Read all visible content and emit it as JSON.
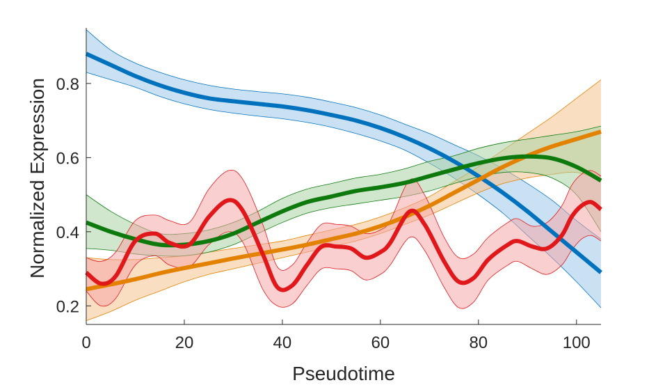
{
  "chart_data": {
    "type": "line",
    "title": "",
    "xlabel": "Pseudotime",
    "ylabel": "Normalized Expression",
    "xlim": [
      0,
      105
    ],
    "ylim": [
      0.15,
      0.95
    ],
    "xticks": [
      0,
      20,
      40,
      60,
      80,
      100
    ],
    "yticks": [
      0.2,
      0.4,
      0.6,
      0.8
    ],
    "xtick_labels": [
      "0",
      "20",
      "40",
      "60",
      "80",
      "100"
    ],
    "ytick_labels": [
      "0.2",
      "0.4",
      "0.6",
      "0.8"
    ],
    "grid": false,
    "legend": "none",
    "x": [
      0,
      5,
      10,
      15,
      20,
      25,
      30,
      35,
      40,
      45,
      50,
      55,
      60,
      65,
      70,
      75,
      80,
      85,
      90,
      95,
      100,
      105
    ],
    "series": [
      {
        "color": "#0072BD",
        "band_color": "#9cc8ea",
        "values": [
          0.88,
          0.85,
          0.82,
          0.795,
          0.775,
          0.76,
          0.752,
          0.745,
          0.738,
          0.728,
          0.715,
          0.7,
          0.68,
          0.655,
          0.625,
          0.59,
          0.55,
          0.505,
          0.455,
          0.4,
          0.345,
          0.29
        ],
        "lower": [
          0.83,
          0.81,
          0.79,
          0.765,
          0.745,
          0.73,
          0.72,
          0.712,
          0.705,
          0.695,
          0.682,
          0.665,
          0.645,
          0.62,
          0.585,
          0.545,
          0.5,
          0.45,
          0.39,
          0.33,
          0.265,
          0.195
        ],
        "upper": [
          0.945,
          0.89,
          0.855,
          0.83,
          0.81,
          0.795,
          0.785,
          0.778,
          0.772,
          0.763,
          0.75,
          0.735,
          0.715,
          0.69,
          0.665,
          0.635,
          0.605,
          0.57,
          0.53,
          0.485,
          0.43,
          0.38
        ]
      },
      {
        "color": "#D95319",
        "band_color": "#f5c290",
        "line_color": "#E38100",
        "values": [
          0.245,
          0.258,
          0.272,
          0.288,
          0.302,
          0.315,
          0.328,
          0.34,
          0.352,
          0.365,
          0.38,
          0.395,
          0.415,
          0.44,
          0.47,
          0.505,
          0.54,
          0.575,
          0.605,
          0.63,
          0.65,
          0.67
        ],
        "lower": [
          0.16,
          0.185,
          0.215,
          0.24,
          0.265,
          0.285,
          0.3,
          0.315,
          0.33,
          0.345,
          0.36,
          0.375,
          0.395,
          0.42,
          0.445,
          0.475,
          0.505,
          0.53,
          0.545,
          0.555,
          0.56,
          0.54
        ],
        "upper": [
          0.33,
          0.325,
          0.325,
          0.33,
          0.335,
          0.345,
          0.355,
          0.365,
          0.375,
          0.39,
          0.405,
          0.42,
          0.44,
          0.465,
          0.495,
          0.535,
          0.575,
          0.62,
          0.665,
          0.71,
          0.76,
          0.81
        ]
      },
      {
        "color": "#0E7A0D",
        "band_color": "#a9d3a4",
        "values": [
          0.425,
          0.4,
          0.38,
          0.365,
          0.365,
          0.375,
          0.395,
          0.425,
          0.455,
          0.48,
          0.495,
          0.51,
          0.52,
          0.532,
          0.55,
          0.568,
          0.585,
          0.598,
          0.603,
          0.598,
          0.575,
          0.538
        ],
        "lower": [
          0.355,
          0.35,
          0.34,
          0.335,
          0.335,
          0.345,
          0.365,
          0.395,
          0.425,
          0.45,
          0.465,
          0.475,
          0.485,
          0.495,
          0.51,
          0.53,
          0.548,
          0.56,
          0.56,
          0.545,
          0.5,
          0.4
        ],
        "upper": [
          0.5,
          0.455,
          0.42,
          0.395,
          0.395,
          0.405,
          0.425,
          0.455,
          0.49,
          0.515,
          0.53,
          0.545,
          0.555,
          0.57,
          0.59,
          0.605,
          0.625,
          0.64,
          0.65,
          0.66,
          0.67,
          0.685
        ]
      },
      {
        "color": "#D62728",
        "band_color": "#f4a8a8",
        "line_color": "#E0171B",
        "values": [
          0.29,
          0.26,
          0.28,
          0.375,
          0.395,
          0.37,
          0.365,
          0.44,
          0.485,
          0.455,
          0.34,
          0.25,
          0.255,
          0.31,
          0.36,
          0.36,
          0.355,
          0.33,
          0.345,
          0.37,
          0.455,
          0.42,
          0.32,
          0.265,
          0.275,
          0.325,
          0.365,
          0.375,
          0.36,
          0.355,
          0.39,
          0.44,
          0.47,
          0.48,
          0.46
        ],
        "x": [
          0,
          3,
          6,
          10,
          14,
          17,
          21,
          25,
          29,
          32,
          36,
          39,
          42,
          45,
          48,
          51,
          54,
          57,
          60,
          62,
          66,
          69,
          73,
          76,
          79,
          82,
          86,
          88,
          91,
          94,
          97,
          99,
          101,
          103,
          105
        ],
        "lower": [
          0.24,
          0.2,
          0.22,
          0.31,
          0.335,
          0.31,
          0.305,
          0.365,
          0.4,
          0.37,
          0.245,
          0.2,
          0.205,
          0.255,
          0.3,
          0.3,
          0.295,
          0.27,
          0.285,
          0.31,
          0.385,
          0.35,
          0.25,
          0.195,
          0.21,
          0.27,
          0.31,
          0.32,
          0.3,
          0.285,
          0.31,
          0.35,
          0.38,
          0.39,
          0.375
        ],
        "upper": [
          0.33,
          0.32,
          0.345,
          0.43,
          0.445,
          0.43,
          0.425,
          0.515,
          0.565,
          0.54,
          0.42,
          0.305,
          0.31,
          0.37,
          0.42,
          0.42,
          0.415,
          0.395,
          0.405,
          0.43,
          0.54,
          0.5,
          0.385,
          0.33,
          0.34,
          0.385,
          0.425,
          0.435,
          0.415,
          0.425,
          0.47,
          0.525,
          0.555,
          0.565,
          0.55
        ]
      }
    ]
  }
}
